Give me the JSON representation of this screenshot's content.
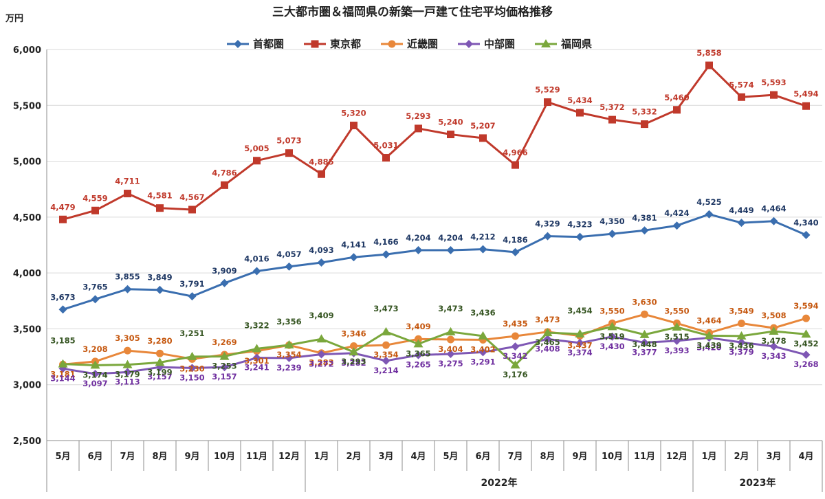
{
  "chart_data": {
    "type": "line",
    "title": "三大都市圏＆福岡県の新築一戸建て住宅平均価格推移",
    "unit_label": "万円",
    "ylim": [
      2500,
      6000
    ],
    "yticks": [
      2500,
      3000,
      3500,
      4000,
      4500,
      5000,
      5500,
      6000
    ],
    "ytick_labels": [
      "2,500",
      "3,000",
      "3,500",
      "4,000",
      "4,500",
      "5,000",
      "5,500",
      "6,000"
    ],
    "categories": [
      "5月",
      "6月",
      "7月",
      "8月",
      "9月",
      "10月",
      "11月",
      "12月",
      "1月",
      "2月",
      "3月",
      "4月",
      "5月",
      "6月",
      "7月",
      "8月",
      "9月",
      "10月",
      "11月",
      "12月",
      "1月",
      "2月",
      "3月",
      "4月"
    ],
    "year_groups": [
      {
        "label": "",
        "start": 0,
        "end": 7
      },
      {
        "label": "2022年",
        "start": 8,
        "end": 19
      },
      {
        "label": "2023年",
        "start": 20,
        "end": 23
      }
    ],
    "series": [
      {
        "name": "首都圏",
        "color": "#3A6EAF",
        "marker": "diamond",
        "values": [
          3673,
          3765,
          3855,
          3849,
          3791,
          3909,
          4016,
          4057,
          4093,
          4141,
          4166,
          4204,
          4204,
          4212,
          4186,
          4329,
          4323,
          4350,
          4381,
          4424,
          4525,
          4449,
          4464,
          4340
        ],
        "labels": [
          "3,673",
          "3,765",
          "3,855",
          "3,849",
          "3,791",
          "3,909",
          "4,016",
          "4,057",
          "4,093",
          "4,141",
          "4,166",
          "4,204",
          "4,204",
          "4,212",
          "4,186",
          "4,329",
          "4,323",
          "4,350",
          "4,381",
          "4,424",
          "4,525",
          "4,449",
          "4,464",
          "4,340"
        ],
        "label_color": "#1F3864"
      },
      {
        "name": "東京都",
        "color": "#C0392B",
        "marker": "square",
        "values": [
          4479,
          4559,
          4711,
          4581,
          4567,
          4786,
          5005,
          5073,
          4885,
          5320,
          5031,
          5293,
          5240,
          5207,
          4966,
          5529,
          5434,
          5372,
          5332,
          5460,
          5858,
          5574,
          5593,
          5494
        ],
        "labels": [
          "4,479",
          "4,559",
          "4,711",
          "4,581",
          "4,567",
          "4,786",
          "5,005",
          "5,073",
          "4,885",
          "5,320",
          "5,031",
          "5,293",
          "5,240",
          "5,207",
          "4,966",
          "5,529",
          "5,434",
          "5,372",
          "5,332",
          "5,460",
          "5,858",
          "5,574",
          "5,593",
          "5,494"
        ],
        "label_color": "#C0392B"
      },
      {
        "name": "近畿圏",
        "color": "#E8873A",
        "marker": "circle",
        "values": [
          3181,
          3208,
          3305,
          3280,
          3230,
          3269,
          3301,
          3354,
          3283,
          3346,
          3354,
          3409,
          3404,
          3402,
          3435,
          3473,
          3437,
          3550,
          3630,
          3550,
          3464,
          3549,
          3508,
          3594
        ],
        "labels": [
          "3,181",
          "3,208",
          "3,305",
          "3,280",
          "3,230",
          "3,269",
          "3,301",
          "3,354",
          "3,283",
          "3,346",
          "3,354",
          "3,409",
          "3,404",
          "3,402",
          "3,435",
          "3,473",
          "3,437",
          "3,550",
          "3,630",
          "3,550",
          "3,464",
          "3,549",
          "3,508",
          "3,594"
        ],
        "label_color": "#C65911"
      },
      {
        "name": "中部圏",
        "color": "#7E57B4",
        "marker": "diamond",
        "values": [
          3144,
          3097,
          3113,
          3157,
          3150,
          3157,
          3241,
          3239,
          3272,
          3282,
          3214,
          3265,
          3275,
          3291,
          3342,
          3408,
          3374,
          3430,
          3377,
          3393,
          3420,
          3379,
          3343,
          3268
        ],
        "labels": [
          "3,144",
          "3,097",
          "3,113",
          "3,157",
          "3,150",
          "3,157",
          "3,241",
          "3,239",
          "3,272",
          "3,282",
          "3,214",
          "3,265",
          "3,275",
          "3,291",
          "3,342",
          "3,408",
          "3,374",
          "3,430",
          "3,377",
          "3,393",
          "3,420",
          "3,379",
          "3,343",
          "3,268"
        ],
        "label_color": "#7030A0"
      },
      {
        "name": "福岡県",
        "color": "#7AA73C",
        "marker": "triangle",
        "values": [
          3185,
          3174,
          3179,
          3199,
          3251,
          3253,
          3322,
          3356,
          3409,
          3293,
          3473,
          3365,
          3473,
          3436,
          3176,
          3465,
          3454,
          3519,
          3448,
          3515,
          3439,
          3436,
          3478,
          3452
        ],
        "labels": [
          "3,185",
          "3,174",
          "3,179",
          "3,199",
          "3,251",
          "3,253",
          "3,322",
          "3,356",
          "3,409",
          "3,293",
          "3,473",
          "3,365",
          "3,473",
          "3,436",
          "3,176",
          "3,465",
          "3,454",
          "3,519",
          "3,448",
          "3,515",
          "3,439",
          "3,436",
          "3,478",
          "3,452"
        ],
        "label_color": "#375623"
      }
    ]
  }
}
